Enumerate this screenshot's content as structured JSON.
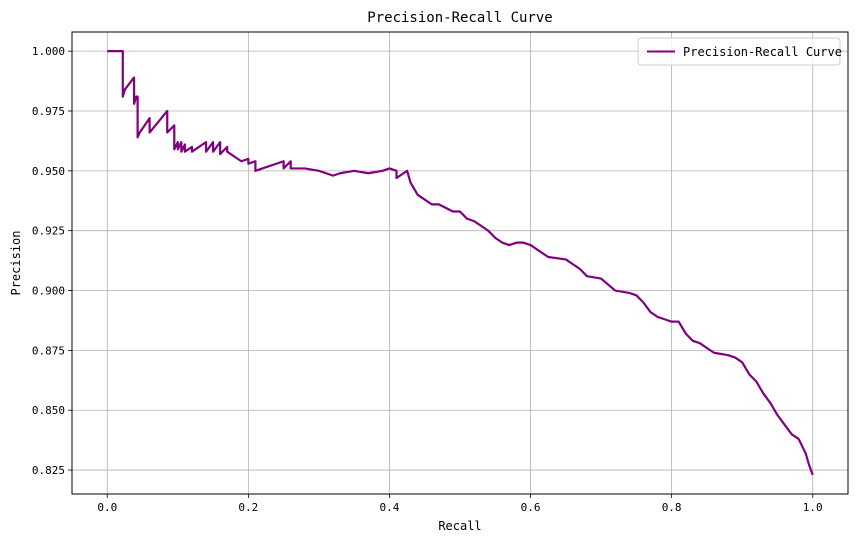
{
  "chart_data": {
    "type": "line",
    "title": "Precision-Recall Curve",
    "xlabel": "Recall",
    "ylabel": "Precision",
    "xlim": [
      -0.05,
      1.05
    ],
    "ylim": [
      0.815,
      1.008
    ],
    "xticks": [
      0.0,
      0.2,
      0.4,
      0.6,
      0.8,
      1.0
    ],
    "xtick_labels": [
      "0.0",
      "0.2",
      "0.4",
      "0.6",
      "0.8",
      "1.0"
    ],
    "yticks": [
      0.825,
      0.85,
      0.875,
      0.9,
      0.925,
      0.95,
      0.975,
      1.0
    ],
    "ytick_labels": [
      "0.825",
      "0.850",
      "0.875",
      "0.900",
      "0.925",
      "0.950",
      "0.975",
      "1.000"
    ],
    "grid": true,
    "legend": {
      "placement": "top-right",
      "entries": [
        "Precision-Recall Curve"
      ]
    },
    "colors": {
      "series": "#800080",
      "grid": "#b0b0b0",
      "axes": "#000000"
    },
    "series": [
      {
        "name": "Precision-Recall Curve",
        "x": [
          0.0,
          0.022,
          0.022,
          0.025,
          0.038,
          0.038,
          0.041,
          0.043,
          0.043,
          0.046,
          0.046,
          0.06,
          0.06,
          0.085,
          0.085,
          0.095,
          0.095,
          0.1,
          0.1,
          0.105,
          0.105,
          0.11,
          0.11,
          0.12,
          0.12,
          0.14,
          0.14,
          0.15,
          0.15,
          0.16,
          0.16,
          0.17,
          0.17,
          0.185,
          0.19,
          0.2,
          0.2,
          0.21,
          0.21,
          0.25,
          0.25,
          0.26,
          0.26,
          0.28,
          0.3,
          0.32,
          0.33,
          0.35,
          0.37,
          0.39,
          0.4,
          0.41,
          0.41,
          0.425,
          0.43,
          0.44,
          0.45,
          0.46,
          0.47,
          0.49,
          0.5,
          0.51,
          0.52,
          0.53,
          0.54,
          0.55,
          0.56,
          0.57,
          0.58,
          0.59,
          0.6,
          0.62,
          0.625,
          0.65,
          0.67,
          0.68,
          0.7,
          0.72,
          0.74,
          0.75,
          0.76,
          0.77,
          0.78,
          0.79,
          0.8,
          0.81,
          0.82,
          0.83,
          0.84,
          0.85,
          0.86,
          0.88,
          0.89,
          0.9,
          0.91,
          0.92,
          0.93,
          0.94,
          0.95,
          0.96,
          0.97,
          0.98,
          0.99,
          0.995,
          1.0
        ],
        "y": [
          1.0,
          1.0,
          0.981,
          0.984,
          0.989,
          0.978,
          0.981,
          0.981,
          0.964,
          0.966,
          0.966,
          0.972,
          0.966,
          0.975,
          0.966,
          0.969,
          0.959,
          0.962,
          0.959,
          0.962,
          0.958,
          0.961,
          0.958,
          0.96,
          0.958,
          0.962,
          0.958,
          0.962,
          0.958,
          0.962,
          0.957,
          0.96,
          0.958,
          0.955,
          0.954,
          0.955,
          0.953,
          0.954,
          0.95,
          0.954,
          0.951,
          0.954,
          0.951,
          0.951,
          0.95,
          0.948,
          0.949,
          0.95,
          0.949,
          0.95,
          0.951,
          0.95,
          0.947,
          0.95,
          0.945,
          0.94,
          0.938,
          0.936,
          0.936,
          0.933,
          0.933,
          0.93,
          0.929,
          0.927,
          0.925,
          0.922,
          0.92,
          0.919,
          0.92,
          0.92,
          0.919,
          0.915,
          0.914,
          0.913,
          0.909,
          0.906,
          0.905,
          0.9,
          0.899,
          0.898,
          0.895,
          0.891,
          0.889,
          0.888,
          0.887,
          0.887,
          0.882,
          0.879,
          0.878,
          0.876,
          0.874,
          0.873,
          0.872,
          0.87,
          0.865,
          0.862,
          0.857,
          0.853,
          0.848,
          0.844,
          0.84,
          0.838,
          0.832,
          0.827,
          0.823
        ]
      }
    ]
  }
}
